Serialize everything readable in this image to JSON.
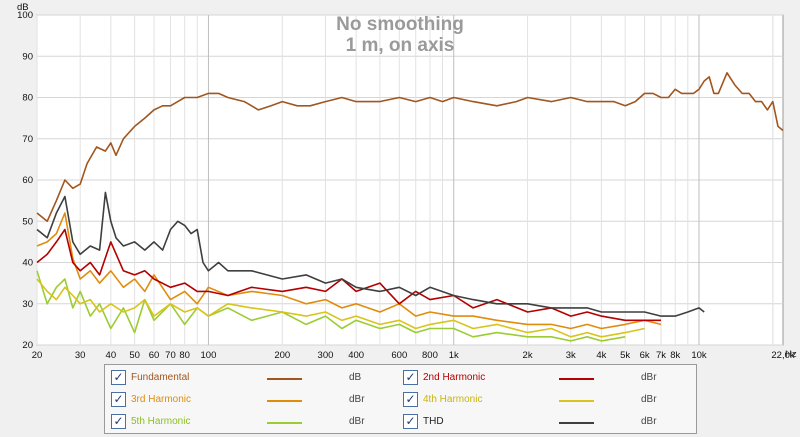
{
  "chart_data": {
    "type": "line",
    "title": "No smoothing",
    "subtitle": "1 m, on axis",
    "ylabel": "dB",
    "xunit": "Hz",
    "xscale": "log",
    "xlim": [
      20,
      22000
    ],
    "ylim": [
      20,
      100
    ],
    "grid": true,
    "y_ticks": [
      20,
      30,
      40,
      50,
      60,
      70,
      80,
      90,
      100
    ],
    "y_tick_labels": [
      "20",
      "30",
      "40",
      "50",
      "60",
      "70",
      "80",
      "90",
      "100"
    ],
    "x_ticks": [
      20,
      30,
      40,
      50,
      60,
      70,
      80,
      100,
      200,
      300,
      400,
      600,
      800,
      1000,
      2000,
      3000,
      4000,
      5000,
      6000,
      7000,
      8000,
      10000,
      22000
    ],
    "x_tick_labels": [
      "20",
      "30",
      "40",
      "50",
      "60",
      "70",
      "80",
      "100",
      "200",
      "300",
      "400",
      "600",
      "800",
      "1k",
      "2k",
      "3k",
      "4k",
      "5k",
      "6k",
      "7k",
      "8k",
      "10k",
      "22,0k"
    ],
    "series": [
      {
        "name": "Fundamental",
        "unit": "dB",
        "color": "#a0561e",
        "x": [
          20,
          22,
          24,
          26,
          28,
          30,
          32,
          35,
          38,
          40,
          42,
          45,
          50,
          55,
          60,
          65,
          70,
          75,
          80,
          90,
          100,
          110,
          120,
          140,
          160,
          180,
          200,
          230,
          260,
          300,
          350,
          400,
          450,
          500,
          600,
          700,
          800,
          900,
          1000,
          1200,
          1500,
          1800,
          2000,
          2500,
          3000,
          3500,
          4000,
          4500,
          5000,
          5500,
          6000,
          6500,
          7000,
          7500,
          8000,
          8500,
          9000,
          9500,
          10000,
          10500,
          11000,
          11500,
          12000,
          13000,
          14000,
          15000,
          16000,
          17000,
          18000,
          19000,
          20000,
          21000,
          22000
        ],
        "y": [
          52,
          50,
          55,
          60,
          58,
          59,
          64,
          68,
          67,
          69,
          66,
          70,
          73,
          75,
          77,
          78,
          78,
          79,
          80,
          80,
          81,
          81,
          80,
          79,
          77,
          78,
          79,
          78,
          78,
          79,
          80,
          79,
          79,
          79,
          80,
          79,
          80,
          79,
          80,
          79,
          78,
          79,
          80,
          79,
          80,
          79,
          79,
          79,
          78,
          79,
          81,
          81,
          80,
          80,
          82,
          81,
          81,
          81,
          82,
          84,
          85,
          81,
          81,
          86,
          83,
          81,
          81,
          79,
          79,
          77,
          79,
          73,
          72
        ]
      },
      {
        "name": "2nd Harmonic",
        "unit": "dBr",
        "color": "#b30000",
        "x": [
          20,
          22,
          24,
          26,
          28,
          30,
          33,
          36,
          40,
          45,
          50,
          55,
          60,
          70,
          80,
          90,
          100,
          120,
          150,
          200,
          250,
          300,
          350,
          400,
          500,
          600,
          700,
          800,
          1000,
          1200,
          1500,
          2000,
          2500,
          3000,
          3500,
          4000,
          5000,
          6000,
          7000
        ],
        "y": [
          40,
          42,
          45,
          48,
          40,
          38,
          40,
          37,
          45,
          38,
          37,
          38,
          36,
          34,
          35,
          33,
          33,
          32,
          34,
          33,
          34,
          33,
          36,
          33,
          35,
          30,
          33,
          31,
          32,
          29,
          31,
          28,
          29,
          27,
          28,
          27,
          26,
          26,
          26
        ]
      },
      {
        "name": "3rd Harmonic",
        "unit": "dBr",
        "color": "#e08c0c",
        "x": [
          20,
          22,
          24,
          26,
          28,
          30,
          33,
          36,
          40,
          45,
          50,
          55,
          60,
          70,
          80,
          90,
          100,
          120,
          150,
          200,
          250,
          300,
          350,
          400,
          500,
          600,
          700,
          800,
          1000,
          1200,
          1500,
          2000,
          2500,
          3000,
          3500,
          4000,
          5000,
          6000,
          7000
        ],
        "y": [
          44,
          45,
          47,
          52,
          41,
          36,
          38,
          35,
          38,
          34,
          36,
          33,
          37,
          31,
          33,
          30,
          34,
          32,
          33,
          32,
          30,
          31,
          29,
          30,
          28,
          30,
          27,
          28,
          27,
          27,
          26,
          25,
          25,
          24,
          25,
          24,
          25,
          26,
          25
        ]
      },
      {
        "name": "4th Harmonic",
        "unit": "dBr",
        "color": "#d8c41a",
        "x": [
          20,
          22,
          24,
          26,
          28,
          30,
          33,
          36,
          40,
          45,
          50,
          55,
          60,
          70,
          80,
          90,
          100,
          120,
          150,
          200,
          250,
          300,
          350,
          400,
          500,
          600,
          700,
          800,
          1000,
          1200,
          1500,
          2000,
          2500,
          3000,
          3500,
          4000,
          5000,
          6000
        ],
        "y": [
          36,
          33,
          31,
          34,
          32,
          30,
          31,
          28,
          30,
          28,
          29,
          31,
          27,
          30,
          28,
          29,
          27,
          30,
          29,
          28,
          27,
          28,
          26,
          27,
          25,
          26,
          24,
          25,
          26,
          24,
          25,
          23,
          24,
          22,
          23,
          22,
          23,
          24
        ]
      },
      {
        "name": "5th Harmonic",
        "unit": "dBr",
        "color": "#9ccc33",
        "x": [
          20,
          22,
          24,
          26,
          28,
          30,
          33,
          36,
          40,
          45,
          50,
          55,
          60,
          70,
          80,
          90,
          100,
          120,
          150,
          200,
          250,
          300,
          350,
          400,
          500,
          600,
          700,
          800,
          1000,
          1200,
          1500,
          2000,
          2500,
          3000,
          3500,
          4000,
          5000
        ],
        "y": [
          38,
          30,
          34,
          36,
          29,
          33,
          27,
          30,
          24,
          29,
          23,
          31,
          26,
          30,
          25,
          29,
          27,
          29,
          26,
          28,
          25,
          27,
          24,
          26,
          24,
          25,
          23,
          24,
          24,
          22,
          23,
          22,
          22,
          21,
          22,
          21,
          22
        ]
      },
      {
        "name": "THD",
        "unit": "dBr",
        "color": "#3f3f3f",
        "x": [
          20,
          22,
          24,
          26,
          28,
          30,
          33,
          36,
          38,
          40,
          42,
          45,
          50,
          55,
          60,
          65,
          70,
          75,
          80,
          85,
          90,
          95,
          100,
          110,
          120,
          150,
          200,
          250,
          300,
          350,
          400,
          500,
          600,
          700,
          800,
          1000,
          1200,
          1500,
          2000,
          2500,
          3000,
          3500,
          4000,
          5000,
          6000,
          7000,
          8000,
          9000,
          10000,
          10500
        ],
        "y": [
          48,
          46,
          52,
          56,
          45,
          42,
          44,
          43,
          57,
          50,
          46,
          44,
          45,
          43,
          45,
          43,
          48,
          50,
          49,
          47,
          48,
          40,
          38,
          40,
          38,
          38,
          36,
          37,
          35,
          36,
          34,
          33,
          34,
          32,
          34,
          32,
          31,
          30,
          30,
          29,
          29,
          29,
          28,
          28,
          28,
          27,
          27,
          28,
          29,
          28
        ]
      }
    ]
  }
}
